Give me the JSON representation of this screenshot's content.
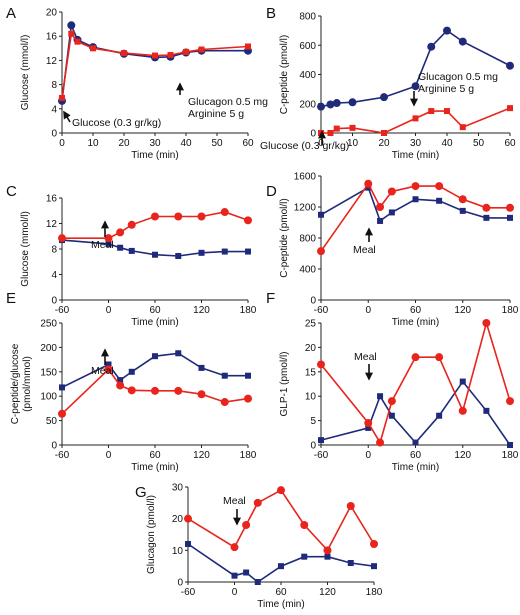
{
  "colors": {
    "series_a": "#1f2a7a",
    "series_b": "#e8241c",
    "axis": "#222222"
  },
  "chart_data": [
    {
      "id": "A",
      "type": "line",
      "panel_label": "A",
      "xlabel": "Time (min)",
      "ylabel": "Glucose (mmol/l)",
      "xlim": [
        0,
        60
      ],
      "ylim": [
        0,
        20
      ],
      "xticks": [
        0,
        10,
        20,
        30,
        40,
        50,
        60
      ],
      "yticks": [
        0,
        4,
        8,
        12,
        16,
        20
      ],
      "series": [
        {
          "marker": "circle",
          "color": "#1f2a7a",
          "x": [
            0,
            3,
            5,
            10,
            20,
            30,
            35,
            40,
            45,
            60
          ],
          "y": [
            5.3,
            17.8,
            15.4,
            14.2,
            13.1,
            12.5,
            12.6,
            13.3,
            13.6,
            13.6
          ]
        },
        {
          "marker": "square",
          "color": "#e8241c",
          "x": [
            0,
            3,
            5,
            10,
            20,
            30,
            35,
            40,
            45,
            60
          ],
          "y": [
            5.8,
            16.4,
            15.1,
            14.0,
            13.2,
            12.8,
            12.9,
            13.4,
            13.8,
            14.3
          ]
        }
      ],
      "annotations": [
        {
          "text": "Glucose (0.3 gr/kg)",
          "arrow_x": 0,
          "arrow_dir": "up"
        },
        {
          "text": "Glucagon 0.5 mg",
          "arrow_x": 30,
          "arrow_dir": "up"
        },
        {
          "text": "Arginine 5 g",
          "arrow_x": 30
        }
      ]
    },
    {
      "id": "B",
      "type": "line",
      "panel_label": "B",
      "xlabel": "Time (min)",
      "ylabel": "C-peptide (pmol/l)",
      "xlim": [
        0,
        60
      ],
      "ylim": [
        0,
        800
      ],
      "xticks": [
        0,
        10,
        20,
        30,
        40,
        50,
        60
      ],
      "yticks": [
        0,
        200,
        400,
        600,
        800
      ],
      "series": [
        {
          "marker": "circle",
          "color": "#1f2a7a",
          "x": [
            0,
            3,
            5,
            10,
            20,
            30,
            35,
            40,
            45,
            60
          ],
          "y": [
            180,
            195,
            205,
            210,
            245,
            320,
            590,
            700,
            625,
            460
          ]
        },
        {
          "marker": "square",
          "color": "#e8241c",
          "x": [
            0,
            3,
            5,
            10,
            20,
            30,
            35,
            40,
            45,
            60
          ],
          "y": [
            0,
            0,
            30,
            35,
            0,
            100,
            150,
            150,
            40,
            170
          ]
        }
      ],
      "annotations": [
        {
          "text": "Glucagon 0.5 mg",
          "arrow_x": 30,
          "arrow_dir": "down"
        },
        {
          "text": "Arginine 5 g",
          "arrow_x": 30
        },
        {
          "text": "Glucose (0.3 gr/kg)",
          "arrow_x": 0,
          "arrow_dir": "up"
        }
      ]
    },
    {
      "id": "C",
      "type": "line",
      "panel_label": "C",
      "xlabel": "Time (min)",
      "ylabel": "Glucose (mmol/l)",
      "xlim": [
        -60,
        180
      ],
      "ylim": [
        0,
        16
      ],
      "xticks": [
        -60,
        0,
        60,
        120,
        180
      ],
      "yticks": [
        0,
        4,
        8,
        12,
        16
      ],
      "series": [
        {
          "marker": "square",
          "color": "#1f2a7a",
          "x": [
            -60,
            0,
            15,
            30,
            60,
            90,
            120,
            150,
            180
          ],
          "y": [
            9.4,
            8.8,
            8.2,
            7.7,
            7.1,
            6.9,
            7.4,
            7.6,
            7.6
          ]
        },
        {
          "marker": "circle",
          "color": "#e8241c",
          "x": [
            -60,
            0,
            15,
            30,
            60,
            90,
            120,
            150,
            180
          ],
          "y": [
            9.7,
            9.7,
            10.6,
            11.8,
            13.1,
            13.1,
            13.1,
            13.8,
            12.5
          ]
        }
      ],
      "annotations": [
        {
          "text": "Meal",
          "arrow_x": 0,
          "arrow_dir": "up"
        }
      ]
    },
    {
      "id": "D",
      "type": "line",
      "panel_label": "D",
      "xlabel": "Time (min)",
      "ylabel": "C-peptide (pmol/l)",
      "xlim": [
        -60,
        180
      ],
      "ylim": [
        0,
        1600
      ],
      "xticks": [
        -60,
        0,
        60,
        120,
        180
      ],
      "yticks": [
        0,
        400,
        800,
        1200,
        1600
      ],
      "series": [
        {
          "marker": "square",
          "color": "#1f2a7a",
          "x": [
            -60,
            0,
            15,
            30,
            60,
            90,
            120,
            150,
            180
          ],
          "y": [
            1100,
            1450,
            1020,
            1130,
            1300,
            1280,
            1150,
            1060,
            1060
          ]
        },
        {
          "marker": "circle",
          "color": "#e8241c",
          "x": [
            -60,
            0,
            15,
            30,
            60,
            90,
            120,
            150,
            180
          ],
          "y": [
            630,
            1500,
            1200,
            1400,
            1470,
            1470,
            1300,
            1190,
            1190
          ]
        }
      ],
      "annotations": [
        {
          "text": "Meal",
          "arrow_x": 0,
          "arrow_dir": "up"
        }
      ]
    },
    {
      "id": "E",
      "type": "line",
      "panel_label": "E",
      "xlabel": "Time (min)",
      "ylabel": "C-peptide/glucose",
      "ylabel2": "(pmol/mmol)",
      "xlim": [
        -60,
        180
      ],
      "ylim": [
        0,
        250
      ],
      "xticks": [
        -60,
        0,
        60,
        120,
        180
      ],
      "yticks": [
        0,
        50,
        100,
        150,
        200,
        250
      ],
      "series": [
        {
          "marker": "square",
          "color": "#1f2a7a",
          "x": [
            -60,
            0,
            15,
            30,
            60,
            90,
            120,
            150,
            180
          ],
          "y": [
            118,
            165,
            133,
            150,
            182,
            188,
            158,
            142,
            142
          ]
        },
        {
          "marker": "circle",
          "color": "#e8241c",
          "x": [
            -60,
            0,
            15,
            30,
            60,
            90,
            120,
            150,
            180
          ],
          "y": [
            64,
            155,
            122,
            112,
            111,
            111,
            104,
            88,
            95
          ]
        }
      ],
      "annotations": [
        {
          "text": "Meal",
          "arrow_x": 0,
          "arrow_dir": "up"
        }
      ]
    },
    {
      "id": "F",
      "type": "line",
      "panel_label": "F",
      "xlabel": "Time (min)",
      "ylabel": "GLP-1 (pmol/l)",
      "xlim": [
        -60,
        180
      ],
      "ylim": [
        0,
        25
      ],
      "xticks": [
        -60,
        0,
        60,
        120,
        180
      ],
      "yticks": [
        0,
        5,
        10,
        15,
        20,
        25
      ],
      "series": [
        {
          "marker": "square",
          "color": "#1f2a7a",
          "x": [
            -60,
            0,
            15,
            30,
            60,
            90,
            120,
            150,
            180
          ],
          "y": [
            1,
            3.5,
            10,
            6,
            0.5,
            6,
            13,
            7,
            0
          ]
        },
        {
          "marker": "circle",
          "color": "#e8241c",
          "x": [
            -60,
            0,
            15,
            30,
            60,
            90,
            120,
            150,
            180
          ],
          "y": [
            16.5,
            4.5,
            0.5,
            9,
            18,
            18,
            7,
            25,
            9
          ]
        }
      ],
      "annotations": [
        {
          "text": "Meal",
          "arrow_x": 0,
          "arrow_dir": "down"
        }
      ]
    },
    {
      "id": "G",
      "type": "line",
      "panel_label": "G",
      "xlabel": "Time (min)",
      "ylabel": "Glucagon (pmol/l)",
      "xlim": [
        -60,
        180
      ],
      "ylim": [
        0,
        30
      ],
      "xticks": [
        -60,
        0,
        60,
        120,
        180
      ],
      "yticks": [
        0,
        10,
        20,
        30
      ],
      "series": [
        {
          "marker": "square",
          "color": "#1f2a7a",
          "x": [
            -60,
            0,
            15,
            30,
            60,
            90,
            120,
            150,
            180
          ],
          "y": [
            12,
            2,
            3,
            0,
            5,
            8,
            8,
            6,
            5
          ]
        },
        {
          "marker": "circle",
          "color": "#e8241c",
          "x": [
            -60,
            0,
            15,
            30,
            60,
            90,
            120,
            150,
            180
          ],
          "y": [
            20,
            11,
            18,
            25,
            29,
            18,
            10,
            24,
            12
          ]
        }
      ],
      "annotations": [
        {
          "text": "Meal",
          "arrow_x": 0,
          "arrow_dir": "down"
        }
      ]
    }
  ]
}
